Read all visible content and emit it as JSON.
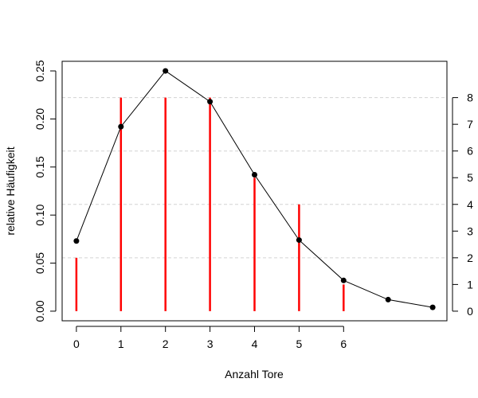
{
  "chart_data": {
    "type": "line",
    "title": "",
    "xlabel": "Anzahl Tore",
    "ylabel": "relative Häufigkeit",
    "x_tick_labels": [
      "0",
      "1",
      "2",
      "3",
      "4",
      "5",
      "6"
    ],
    "x_range": [
      -0.32,
      8.32
    ],
    "y_left_ticks": [
      "0.00",
      "0.05",
      "0.10",
      "0.15",
      "0.20",
      "0.25"
    ],
    "y_left_range": [
      -0.01,
      0.26
    ],
    "y_right_ticks": [
      "0",
      "1",
      "2",
      "3",
      "4",
      "5",
      "6",
      "7",
      "8"
    ],
    "y_right_range": [
      -0.36,
      9.36
    ],
    "grid": "horizontal dashed lines at right-axis ticks 2, 4, 6, 8",
    "series": [
      {
        "kind": "line-with-points",
        "color": "#000000",
        "x": [
          0,
          1,
          2,
          3,
          4,
          5,
          6,
          7,
          8
        ],
        "y": [
          0.073,
          0.192,
          0.25,
          0.218,
          0.142,
          0.074,
          0.032,
          0.012,
          0.004
        ]
      },
      {
        "kind": "vertical-bars",
        "axis": "right",
        "color": "#ff0000",
        "x": [
          0,
          1,
          2,
          3,
          4,
          5,
          6
        ],
        "y": [
          2,
          8,
          8,
          8,
          5,
          4,
          1
        ]
      }
    ]
  }
}
